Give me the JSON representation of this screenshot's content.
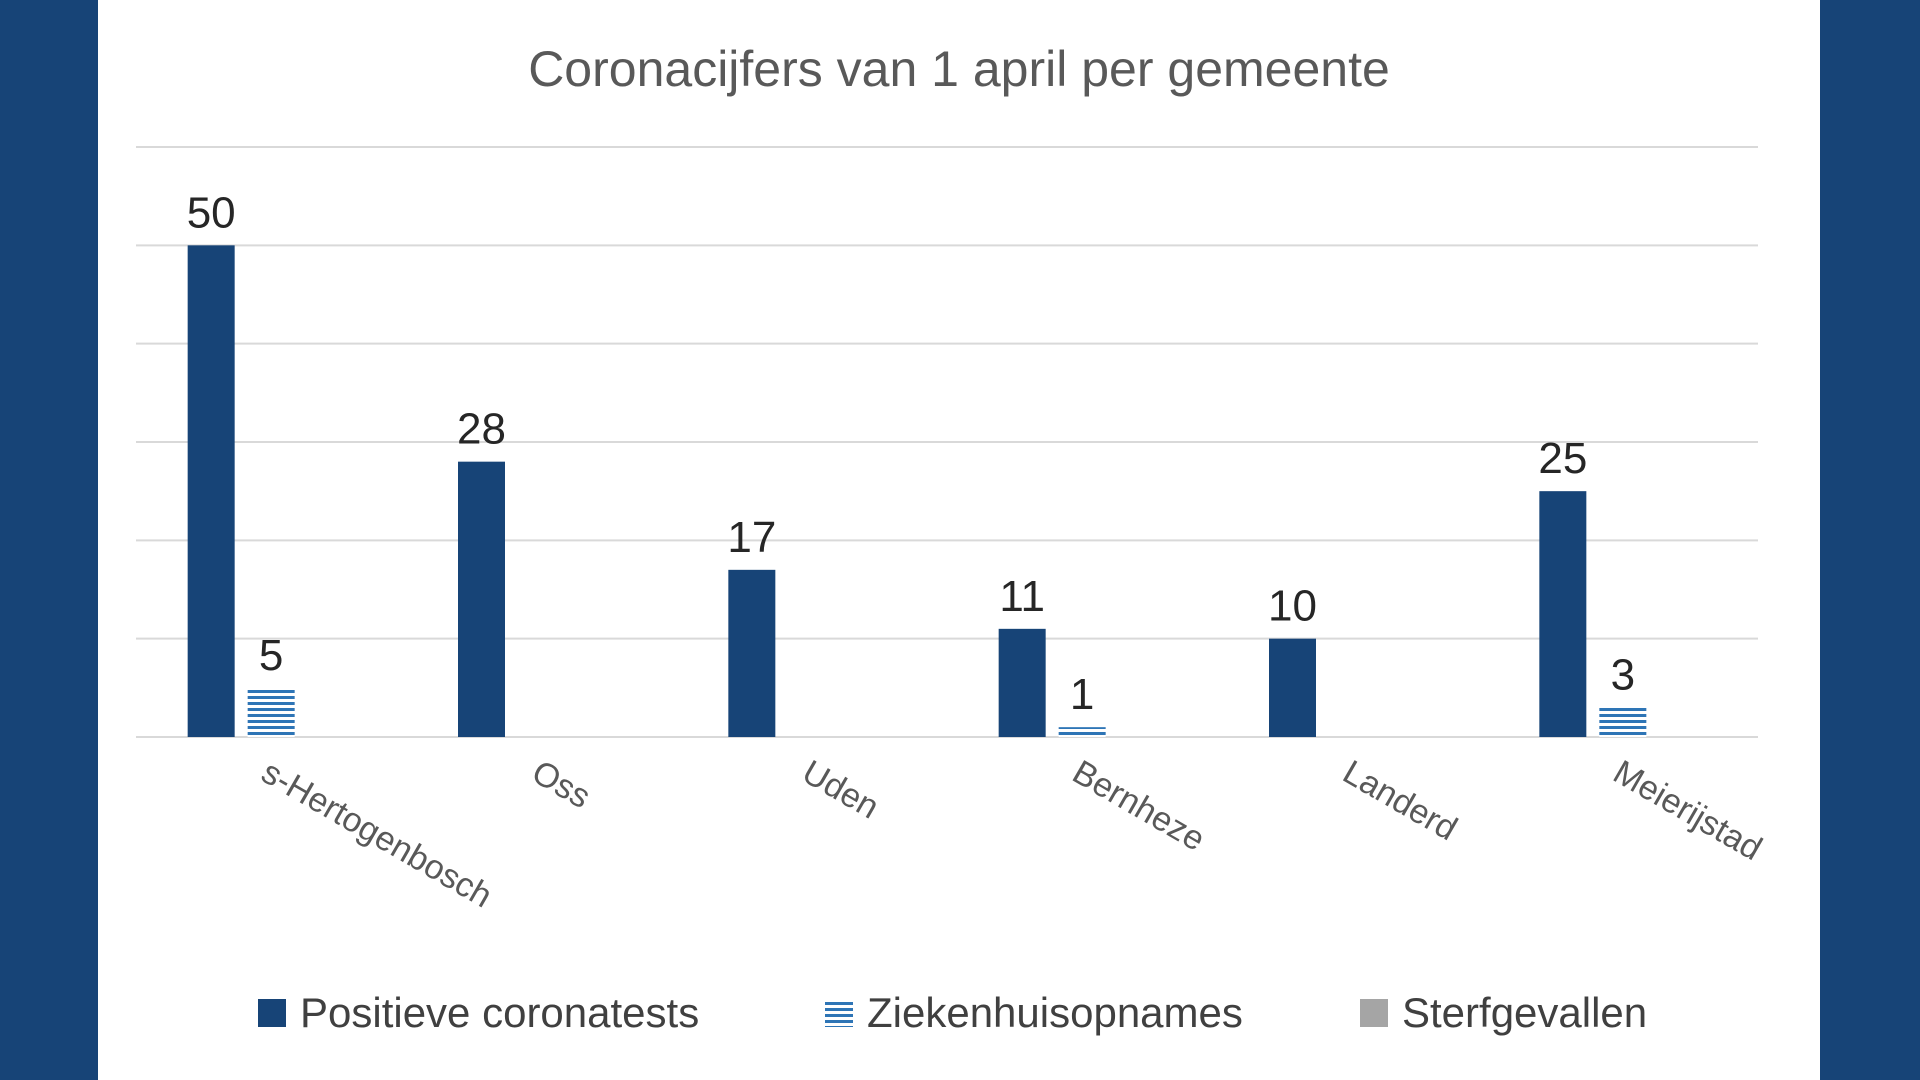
{
  "chart_data": {
    "type": "bar",
    "title": "Coronacijfers van 1 april per gemeente",
    "categories": [
      "s-Hertogenbosch",
      "Oss",
      "Uden",
      "Bernheze",
      "Landerd",
      "Meierijstad"
    ],
    "series": [
      {
        "name": "Positieve coronatests",
        "values": [
          50,
          28,
          17,
          11,
          10,
          25
        ],
        "color": "#174477",
        "pattern": "solid"
      },
      {
        "name": "Ziekenhuisopnames",
        "values": [
          5,
          null,
          null,
          1,
          null,
          3
        ],
        "color": "#2e75b6",
        "pattern": "horizontal-stripes"
      },
      {
        "name": "Sterfgevallen",
        "values": [
          null,
          null,
          null,
          null,
          null,
          null
        ],
        "color": "#a5a5a5",
        "pattern": "solid"
      }
    ],
    "ylim": [
      0,
      60
    ],
    "grid": true,
    "legend_position": "bottom",
    "xlabel": "",
    "ylabel": ""
  },
  "colors": {
    "background_frame": "#174477",
    "panel": "#ffffff"
  }
}
